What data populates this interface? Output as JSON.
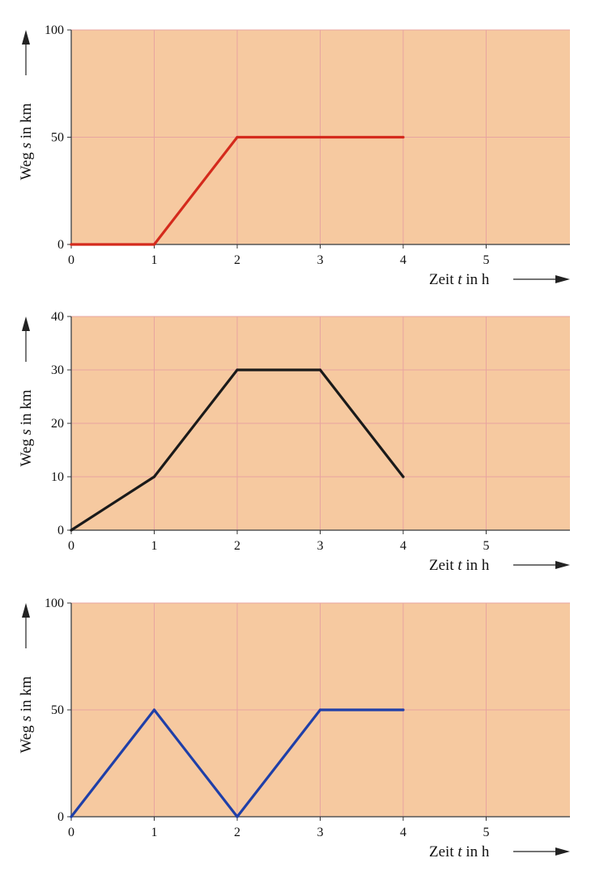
{
  "colors": {
    "panel_background": "#f6c9a0",
    "grid_line": "#e8a4a0",
    "axis_line": "#555555"
  },
  "chart_data": [
    {
      "type": "line",
      "title": "",
      "xlabel": {
        "prefix": "Zeit ",
        "var": "t",
        "suffix": " in h"
      },
      "ylabel": {
        "prefix": "Weg ",
        "var": "s",
        "suffix": " in km"
      },
      "xlim": [
        0,
        6
      ],
      "ylim": [
        0,
        100
      ],
      "x_ticks": [
        "0",
        "1",
        "2",
        "3",
        "4",
        "5"
      ],
      "y_ticks": [
        "0",
        "50",
        "100"
      ],
      "grid": true,
      "series": [
        {
          "color": "#d42a1c",
          "points": [
            [
              0,
              0
            ],
            [
              1,
              0
            ],
            [
              2,
              50
            ],
            [
              4,
              50
            ]
          ]
        }
      ]
    },
    {
      "type": "line",
      "title": "",
      "xlabel": {
        "prefix": "Zeit ",
        "var": "t",
        "suffix": " in h"
      },
      "ylabel": {
        "prefix": "Weg ",
        "var": "s",
        "suffix": " in km"
      },
      "xlim": [
        0,
        6
      ],
      "ylim": [
        0,
        40
      ],
      "x_ticks": [
        "0",
        "1",
        "2",
        "3",
        "4",
        "5"
      ],
      "y_ticks": [
        "0",
        "10",
        "20",
        "30",
        "40"
      ],
      "grid": true,
      "series": [
        {
          "color": "#1a1a1a",
          "points": [
            [
              0,
              0
            ],
            [
              1,
              10
            ],
            [
              2,
              30
            ],
            [
              3,
              30
            ],
            [
              4,
              10
            ]
          ]
        }
      ]
    },
    {
      "type": "line",
      "title": "",
      "xlabel": {
        "prefix": "Zeit ",
        "var": "t",
        "suffix": " in h"
      },
      "ylabel": {
        "prefix": "Weg ",
        "var": "s",
        "suffix": " in km"
      },
      "xlim": [
        0,
        6
      ],
      "ylim": [
        0,
        100
      ],
      "x_ticks": [
        "0",
        "1",
        "2",
        "3",
        "4",
        "5"
      ],
      "y_ticks": [
        "0",
        "50",
        "100"
      ],
      "grid": true,
      "series": [
        {
          "color": "#1f3fa8",
          "points": [
            [
              0,
              0
            ],
            [
              1,
              50
            ],
            [
              2,
              0
            ],
            [
              3,
              50
            ],
            [
              4,
              50
            ]
          ]
        }
      ]
    }
  ]
}
